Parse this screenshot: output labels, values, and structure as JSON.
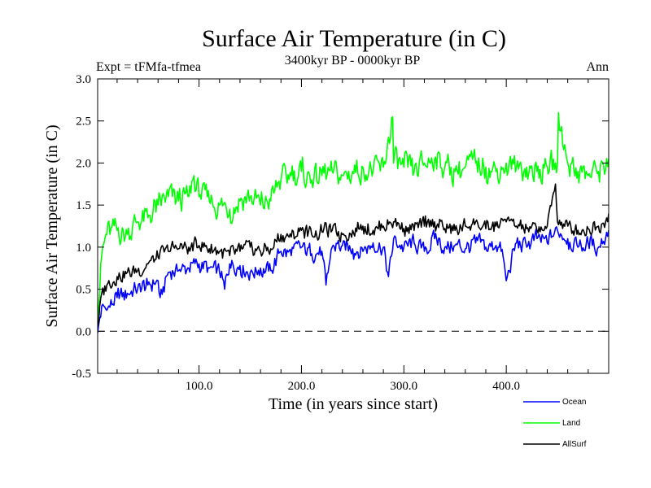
{
  "chart_data": {
    "type": "line",
    "title": "Surface Air Temperature (in C)",
    "subtitle": "3400kyr BP - 0000kyr BP",
    "expt_label": "Expt = tFMfa-tfmea",
    "season_label": "Ann",
    "xlabel": "Time (in years since start)",
    "ylabel": "Surface Air Temperature (in C)",
    "xlim": [
      1,
      500
    ],
    "ylim": [
      -0.5,
      3.0
    ],
    "x_ticks": [
      100,
      200,
      300,
      400
    ],
    "x_tick_labels": [
      "100.0",
      "200.0",
      "300.0",
      "400.0"
    ],
    "y_ticks": [
      -0.5,
      0.0,
      0.5,
      1.0,
      1.5,
      2.0,
      2.5,
      3.0
    ],
    "y_tick_labels": [
      "-0.5",
      "0.0",
      "0.5",
      "1.0",
      "1.5",
      "2.0",
      "2.5",
      "3.0"
    ],
    "reference_line": 0.0,
    "legend_position": "bottom-right, below plot",
    "series": [
      {
        "name": "Ocean",
        "color": "#0000ff",
        "x": [
          1,
          5,
          10,
          20,
          30,
          40,
          50,
          60,
          62,
          70,
          80,
          90,
          100,
          110,
          120,
          125,
          130,
          140,
          150,
          160,
          170,
          180,
          190,
          200,
          210,
          220,
          224,
          230,
          240,
          250,
          260,
          270,
          280,
          285,
          290,
          300,
          310,
          320,
          330,
          340,
          350,
          360,
          370,
          380,
          390,
          395,
          400,
          410,
          420,
          430,
          440,
          450,
          460,
          470,
          480,
          490,
          500
        ],
        "values": [
          -0.02,
          0.3,
          0.25,
          0.4,
          0.45,
          0.5,
          0.55,
          0.6,
          0.4,
          0.7,
          0.72,
          0.75,
          0.8,
          0.75,
          0.7,
          0.5,
          0.8,
          0.78,
          0.7,
          0.75,
          0.72,
          0.95,
          0.9,
          1.0,
          0.92,
          0.95,
          0.55,
          1.0,
          1.02,
          0.98,
          0.95,
          1.05,
          1.0,
          0.65,
          1.1,
          1.0,
          1.05,
          0.95,
          1.1,
          1.0,
          1.02,
          0.98,
          1.05,
          1.0,
          1.02,
          0.95,
          0.6,
          1.05,
          1.0,
          1.1,
          1.05,
          1.2,
          1.1,
          1.0,
          1.05,
          1.0,
          1.2
        ]
      },
      {
        "name": "Land",
        "color": "#00ff00",
        "x": [
          1,
          5,
          10,
          20,
          30,
          40,
          50,
          60,
          70,
          80,
          90,
          95,
          100,
          110,
          120,
          130,
          140,
          150,
          160,
          170,
          180,
          190,
          200,
          210,
          220,
          230,
          240,
          250,
          260,
          270,
          280,
          289,
          290,
          300,
          310,
          320,
          330,
          340,
          350,
          360,
          370,
          380,
          390,
          400,
          410,
          420,
          430,
          440,
          450,
          451,
          460,
          470,
          480,
          490,
          500
        ],
        "values": [
          0.15,
          0.9,
          1.15,
          1.2,
          1.15,
          1.3,
          1.35,
          1.5,
          1.6,
          1.55,
          1.6,
          1.85,
          1.6,
          1.55,
          1.5,
          1.45,
          1.55,
          1.6,
          1.5,
          1.55,
          1.8,
          1.85,
          1.9,
          1.8,
          1.85,
          1.9,
          1.85,
          1.9,
          1.95,
          1.9,
          1.95,
          2.55,
          2.0,
          1.95,
          1.9,
          2.0,
          2.05,
          1.95,
          1.9,
          1.95,
          2.0,
          1.95,
          1.9,
          2.0,
          1.95,
          1.95,
          1.9,
          1.95,
          2.0,
          2.6,
          2.0,
          1.9,
          1.85,
          1.9,
          2.05
        ]
      },
      {
        "name": "AllSurf",
        "color": "#000000",
        "x": [
          1,
          5,
          10,
          20,
          30,
          40,
          50,
          60,
          70,
          80,
          90,
          100,
          110,
          120,
          130,
          140,
          150,
          160,
          170,
          180,
          190,
          200,
          210,
          220,
          230,
          240,
          250,
          260,
          270,
          280,
          290,
          300,
          310,
          320,
          330,
          340,
          350,
          360,
          370,
          380,
          390,
          400,
          410,
          420,
          430,
          440,
          448,
          450,
          460,
          470,
          480,
          490,
          500
        ],
        "values": [
          0.05,
          0.45,
          0.55,
          0.65,
          0.7,
          0.72,
          0.8,
          0.88,
          0.95,
          0.98,
          1.0,
          1.02,
          0.98,
          0.95,
          0.9,
          0.95,
          1.0,
          0.95,
          0.98,
          1.15,
          1.12,
          1.2,
          1.15,
          1.18,
          1.2,
          1.15,
          1.2,
          1.25,
          1.2,
          1.25,
          1.3,
          1.22,
          1.2,
          1.25,
          1.3,
          1.22,
          1.2,
          1.25,
          1.3,
          1.22,
          1.25,
          1.3,
          1.25,
          1.22,
          1.2,
          1.25,
          1.75,
          1.3,
          1.25,
          1.2,
          1.22,
          1.25,
          1.4
        ]
      }
    ]
  }
}
